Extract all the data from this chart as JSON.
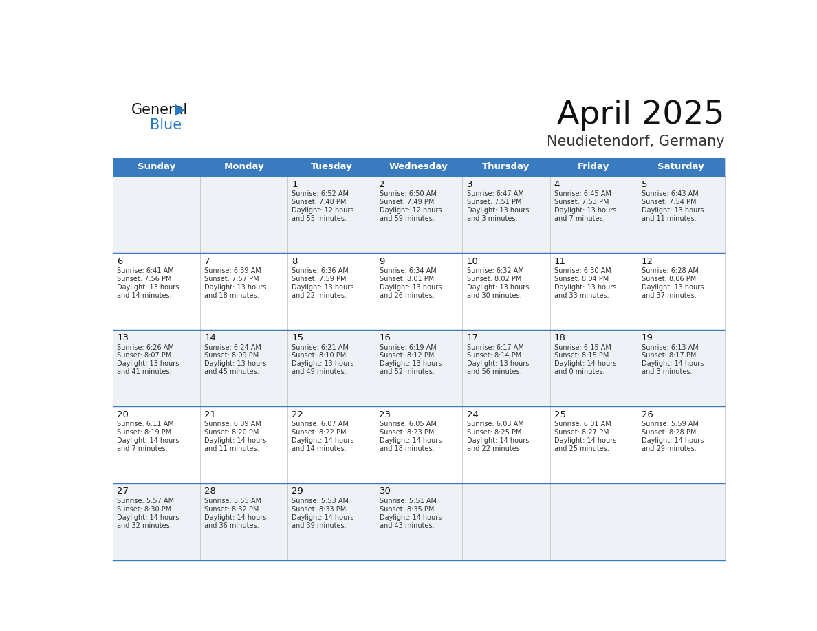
{
  "title": "April 2025",
  "subtitle": "Neudietendorf, Germany",
  "header_bg_color": "#3a7bbf",
  "header_text_color": "#ffffff",
  "day_names": [
    "Sunday",
    "Monday",
    "Tuesday",
    "Wednesday",
    "Thursday",
    "Friday",
    "Saturday"
  ],
  "row_colors": [
    "#eef2f7",
    "#ffffff",
    "#eef2f7",
    "#ffffff",
    "#eef2f7"
  ],
  "border_color": "#3a7bbf",
  "cell_text_color": "#333333",
  "day_num_color": "#111111",
  "title_color": "#111111",
  "subtitle_color": "#333333",
  "logo_general_color": "#111111",
  "logo_blue_color": "#2a7abf",
  "logo_triangle_color": "#2a7abf",
  "weeks": [
    {
      "days": [
        {
          "day": "",
          "info": ""
        },
        {
          "day": "",
          "info": ""
        },
        {
          "day": "1",
          "info": "Sunrise: 6:52 AM\nSunset: 7:48 PM\nDaylight: 12 hours\nand 55 minutes."
        },
        {
          "day": "2",
          "info": "Sunrise: 6:50 AM\nSunset: 7:49 PM\nDaylight: 12 hours\nand 59 minutes."
        },
        {
          "day": "3",
          "info": "Sunrise: 6:47 AM\nSunset: 7:51 PM\nDaylight: 13 hours\nand 3 minutes."
        },
        {
          "day": "4",
          "info": "Sunrise: 6:45 AM\nSunset: 7:53 PM\nDaylight: 13 hours\nand 7 minutes."
        },
        {
          "day": "5",
          "info": "Sunrise: 6:43 AM\nSunset: 7:54 PM\nDaylight: 13 hours\nand 11 minutes."
        }
      ]
    },
    {
      "days": [
        {
          "day": "6",
          "info": "Sunrise: 6:41 AM\nSunset: 7:56 PM\nDaylight: 13 hours\nand 14 minutes."
        },
        {
          "day": "7",
          "info": "Sunrise: 6:39 AM\nSunset: 7:57 PM\nDaylight: 13 hours\nand 18 minutes."
        },
        {
          "day": "8",
          "info": "Sunrise: 6:36 AM\nSunset: 7:59 PM\nDaylight: 13 hours\nand 22 minutes."
        },
        {
          "day": "9",
          "info": "Sunrise: 6:34 AM\nSunset: 8:01 PM\nDaylight: 13 hours\nand 26 minutes."
        },
        {
          "day": "10",
          "info": "Sunrise: 6:32 AM\nSunset: 8:02 PM\nDaylight: 13 hours\nand 30 minutes."
        },
        {
          "day": "11",
          "info": "Sunrise: 6:30 AM\nSunset: 8:04 PM\nDaylight: 13 hours\nand 33 minutes."
        },
        {
          "day": "12",
          "info": "Sunrise: 6:28 AM\nSunset: 8:06 PM\nDaylight: 13 hours\nand 37 minutes."
        }
      ]
    },
    {
      "days": [
        {
          "day": "13",
          "info": "Sunrise: 6:26 AM\nSunset: 8:07 PM\nDaylight: 13 hours\nand 41 minutes."
        },
        {
          "day": "14",
          "info": "Sunrise: 6:24 AM\nSunset: 8:09 PM\nDaylight: 13 hours\nand 45 minutes."
        },
        {
          "day": "15",
          "info": "Sunrise: 6:21 AM\nSunset: 8:10 PM\nDaylight: 13 hours\nand 49 minutes."
        },
        {
          "day": "16",
          "info": "Sunrise: 6:19 AM\nSunset: 8:12 PM\nDaylight: 13 hours\nand 52 minutes."
        },
        {
          "day": "17",
          "info": "Sunrise: 6:17 AM\nSunset: 8:14 PM\nDaylight: 13 hours\nand 56 minutes."
        },
        {
          "day": "18",
          "info": "Sunrise: 6:15 AM\nSunset: 8:15 PM\nDaylight: 14 hours\nand 0 minutes."
        },
        {
          "day": "19",
          "info": "Sunrise: 6:13 AM\nSunset: 8:17 PM\nDaylight: 14 hours\nand 3 minutes."
        }
      ]
    },
    {
      "days": [
        {
          "day": "20",
          "info": "Sunrise: 6:11 AM\nSunset: 8:19 PM\nDaylight: 14 hours\nand 7 minutes."
        },
        {
          "day": "21",
          "info": "Sunrise: 6:09 AM\nSunset: 8:20 PM\nDaylight: 14 hours\nand 11 minutes."
        },
        {
          "day": "22",
          "info": "Sunrise: 6:07 AM\nSunset: 8:22 PM\nDaylight: 14 hours\nand 14 minutes."
        },
        {
          "day": "23",
          "info": "Sunrise: 6:05 AM\nSunset: 8:23 PM\nDaylight: 14 hours\nand 18 minutes."
        },
        {
          "day": "24",
          "info": "Sunrise: 6:03 AM\nSunset: 8:25 PM\nDaylight: 14 hours\nand 22 minutes."
        },
        {
          "day": "25",
          "info": "Sunrise: 6:01 AM\nSunset: 8:27 PM\nDaylight: 14 hours\nand 25 minutes."
        },
        {
          "day": "26",
          "info": "Sunrise: 5:59 AM\nSunset: 8:28 PM\nDaylight: 14 hours\nand 29 minutes."
        }
      ]
    },
    {
      "days": [
        {
          "day": "27",
          "info": "Sunrise: 5:57 AM\nSunset: 8:30 PM\nDaylight: 14 hours\nand 32 minutes."
        },
        {
          "day": "28",
          "info": "Sunrise: 5:55 AM\nSunset: 8:32 PM\nDaylight: 14 hours\nand 36 minutes."
        },
        {
          "day": "29",
          "info": "Sunrise: 5:53 AM\nSunset: 8:33 PM\nDaylight: 14 hours\nand 39 minutes."
        },
        {
          "day": "30",
          "info": "Sunrise: 5:51 AM\nSunset: 8:35 PM\nDaylight: 14 hours\nand 43 minutes."
        },
        {
          "day": "",
          "info": ""
        },
        {
          "day": "",
          "info": ""
        },
        {
          "day": "",
          "info": ""
        }
      ]
    }
  ]
}
